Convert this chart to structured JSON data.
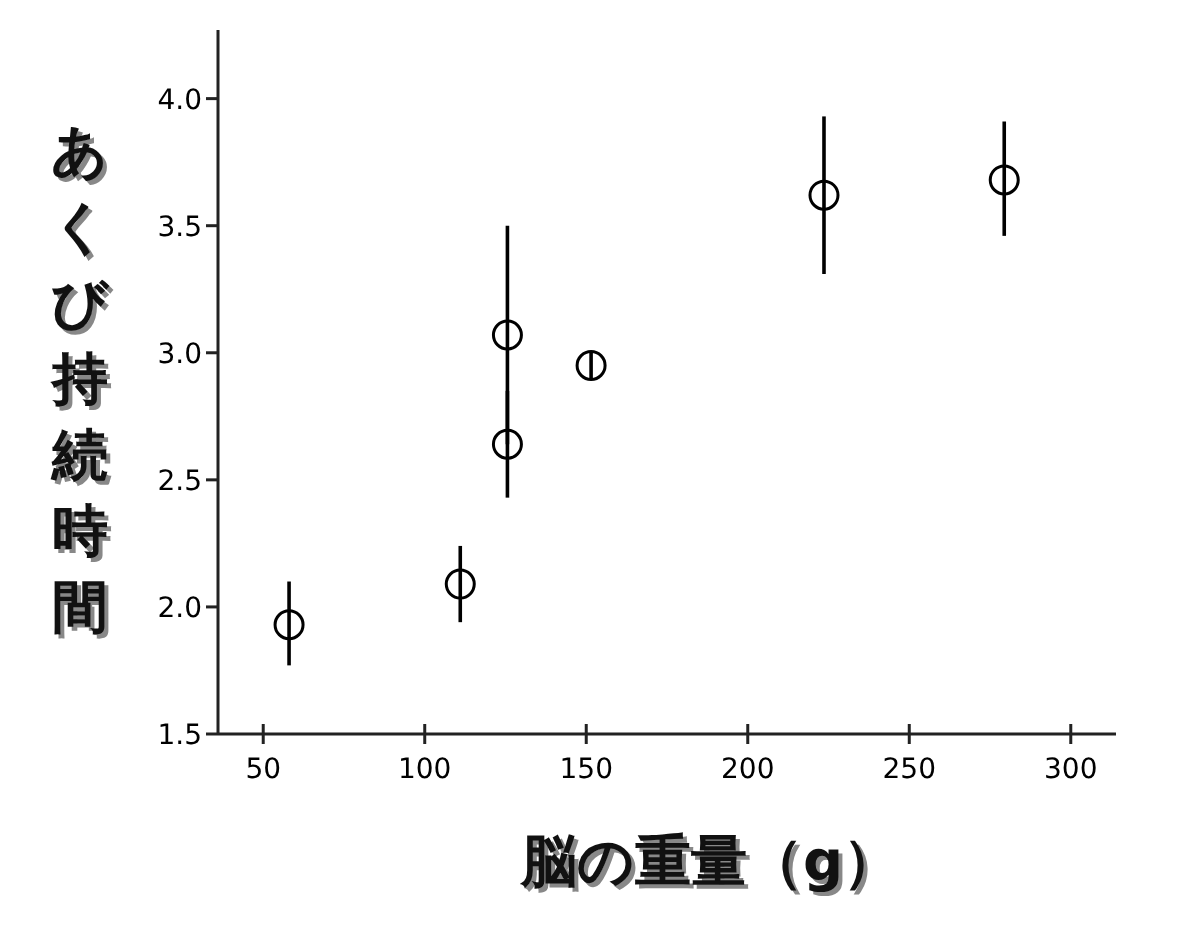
{
  "chart_data": {
    "type": "scatter",
    "xlabel": "脳の重量（g）",
    "ylabel": "あくび持続時間",
    "x": [
      58,
      111,
      125.6,
      125.6,
      151.5,
      223.6,
      279.4
    ],
    "series": [
      {
        "color": "#000000",
        "values": [
          1.93,
          2.09,
          3.07,
          2.64,
          2.95,
          3.62,
          3.68
        ],
        "errors": [
          [
            1.77,
            2.1
          ],
          [
            1.94,
            2.24
          ],
          [
            2.64,
            3.5
          ],
          [
            2.43,
            2.85
          ],
          0.05,
          [
            3.31,
            3.93
          ],
          [
            3.46,
            3.91
          ]
        ]
      }
    ],
    "marker": "circle",
    "grid": false,
    "xlim": [
      36,
      314
    ],
    "xticks": [
      50,
      100,
      150,
      200,
      250,
      300
    ],
    "ylim": [
      1.5,
      4.27
    ],
    "yticks": [
      {
        "value": 1.5,
        "label": "1.5"
      },
      {
        "value": 2.0,
        "label": "2.0"
      },
      {
        "value": 2.5,
        "label": "2.5"
      },
      {
        "value": 3.0,
        "label": "3.0"
      },
      {
        "value": 3.5,
        "label": "3.5"
      },
      {
        "value": 4.0,
        "label": "4.0"
      }
    ]
  }
}
